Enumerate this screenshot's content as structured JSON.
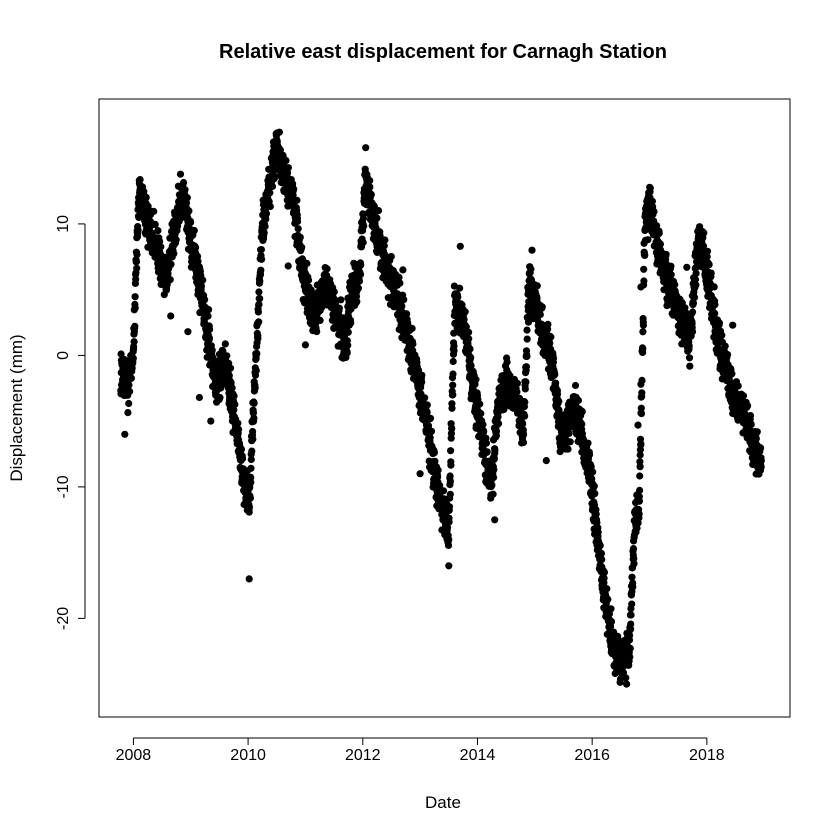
{
  "chart_data": {
    "type": "scatter",
    "title": "Relative east displacement for Carnagh Station",
    "xlabel": "Date",
    "ylabel": "Displacement (mm)",
    "xlim": [
      2007.4,
      2019.45
    ],
    "ylim": [
      -27.5,
      19.5
    ],
    "x_ticks": [
      2008,
      2010,
      2012,
      2014,
      2016,
      2018
    ],
    "y_ticks": [
      -20,
      -10,
      0,
      10
    ],
    "grid": false,
    "marker_color": "#000000",
    "series": [
      {
        "keyframes": [
          [
            2007.78,
            -1.5
          ],
          [
            2007.9,
            -2.5
          ],
          [
            2008.0,
            0.0
          ],
          [
            2008.05,
            7.0
          ],
          [
            2008.1,
            12.5
          ],
          [
            2008.25,
            10.0
          ],
          [
            2008.45,
            7.5
          ],
          [
            2008.55,
            5.5
          ],
          [
            2008.75,
            10.0
          ],
          [
            2008.85,
            12.5
          ],
          [
            2009.0,
            9.0
          ],
          [
            2009.15,
            5.5
          ],
          [
            2009.35,
            0.0
          ],
          [
            2009.45,
            -2.5
          ],
          [
            2009.6,
            -0.5
          ],
          [
            2009.8,
            -5.5
          ],
          [
            2009.95,
            -10.0
          ],
          [
            2010.02,
            -11.5
          ],
          [
            2010.08,
            -5.5
          ],
          [
            2010.15,
            0.5
          ],
          [
            2010.25,
            9.5
          ],
          [
            2010.35,
            12.5
          ],
          [
            2010.5,
            16.0
          ],
          [
            2010.6,
            14.0
          ],
          [
            2010.8,
            11.5
          ],
          [
            2010.95,
            6.0
          ],
          [
            2011.15,
            3.0
          ],
          [
            2011.35,
            5.5
          ],
          [
            2011.55,
            3.0
          ],
          [
            2011.7,
            0.5
          ],
          [
            2011.8,
            5.0
          ],
          [
            2011.95,
            6.0
          ],
          [
            2012.05,
            13.5
          ],
          [
            2012.15,
            11.0
          ],
          [
            2012.35,
            7.5
          ],
          [
            2012.55,
            5.0
          ],
          [
            2012.75,
            2.0
          ],
          [
            2012.95,
            -1.5
          ],
          [
            2013.1,
            -4.5
          ],
          [
            2013.3,
            -10.0
          ],
          [
            2013.45,
            -13.0
          ],
          [
            2013.5,
            -14.0
          ],
          [
            2013.6,
            4.0
          ],
          [
            2013.75,
            2.5
          ],
          [
            2013.95,
            -3.0
          ],
          [
            2014.1,
            -6.5
          ],
          [
            2014.25,
            -10.0
          ],
          [
            2014.35,
            -4.5
          ],
          [
            2014.5,
            -2.0
          ],
          [
            2014.7,
            -3.5
          ],
          [
            2014.8,
            -6.0
          ],
          [
            2014.9,
            5.5
          ],
          [
            2015.05,
            3.0
          ],
          [
            2015.3,
            -0.5
          ],
          [
            2015.45,
            -6.0
          ],
          [
            2015.7,
            -4.0
          ],
          [
            2015.95,
            -8.5
          ],
          [
            2016.15,
            -16.0
          ],
          [
            2016.35,
            -22.0
          ],
          [
            2016.5,
            -23.5
          ],
          [
            2016.65,
            -22.0
          ],
          [
            2016.75,
            -12.0
          ],
          [
            2016.82,
            -12.0
          ],
          [
            2016.92,
            10.0
          ],
          [
            2017.0,
            11.5
          ],
          [
            2017.2,
            7.0
          ],
          [
            2017.45,
            4.0
          ],
          [
            2017.7,
            1.0
          ],
          [
            2017.85,
            9.0
          ],
          [
            2018.0,
            6.5
          ],
          [
            2018.2,
            1.0
          ],
          [
            2018.45,
            -3.0
          ],
          [
            2018.7,
            -5.0
          ],
          [
            2018.95,
            -8.5
          ]
        ],
        "isolated_points": [
          [
            2007.85,
            -6.0
          ],
          [
            2008.65,
            3.0
          ],
          [
            2008.95,
            1.8
          ],
          [
            2009.15,
            -3.2
          ],
          [
            2009.35,
            -5.0
          ],
          [
            2010.02,
            -17.0
          ],
          [
            2010.7,
            6.8
          ],
          [
            2011.0,
            0.8
          ],
          [
            2012.05,
            15.8
          ],
          [
            2012.7,
            6.5
          ],
          [
            2013.0,
            -9.0
          ],
          [
            2013.5,
            -16.0
          ],
          [
            2013.7,
            8.3
          ],
          [
            2014.3,
            -12.5
          ],
          [
            2014.95,
            8.0
          ],
          [
            2015.2,
            -8.0
          ],
          [
            2016.6,
            -25.0
          ],
          [
            2016.8,
            -5.3
          ],
          [
            2016.85,
            -2.2
          ],
          [
            2016.85,
            5.2
          ],
          [
            2017.65,
            6.7
          ],
          [
            2017.75,
            1.8
          ],
          [
            2018.45,
            2.3
          ],
          [
            2018.8,
            -8.3
          ]
        ],
        "noise_amplitude": 1.3,
        "sample_step_years": 0.0028
      }
    ]
  }
}
